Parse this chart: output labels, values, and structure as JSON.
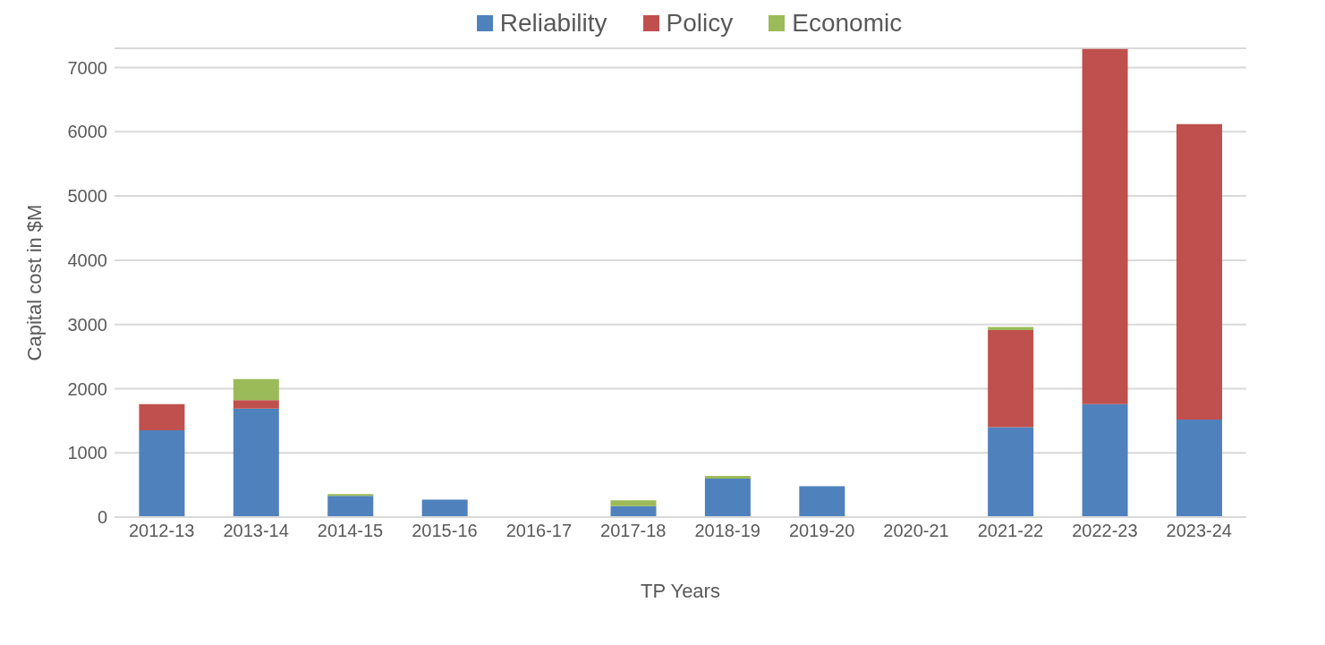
{
  "chart_data": {
    "type": "bar",
    "stacked": true,
    "xlabel": "TP Years",
    "ylabel": "Capital cost in $M",
    "categories": [
      "2012-13",
      "2013-14",
      "2014-15",
      "2015-16",
      "2016-17",
      "2017-18",
      "2018-19",
      "2019-20",
      "2020-21",
      "2021-22",
      "2022-23",
      "2023-24"
    ],
    "series": [
      {
        "name": "Reliability",
        "color": "#4f81bd",
        "values": [
          1350,
          1690,
          330,
          270,
          0,
          170,
          600,
          480,
          0,
          1400,
          1760,
          1520
        ]
      },
      {
        "name": "Policy",
        "color": "#c0504d",
        "values": [
          410,
          130,
          0,
          0,
          0,
          0,
          0,
          0,
          0,
          1510,
          5530,
          4600
        ]
      },
      {
        "name": "Economic",
        "color": "#9bbb59",
        "values": [
          0,
          330,
          30,
          0,
          0,
          90,
          40,
          0,
          0,
          50,
          0,
          0
        ]
      }
    ],
    "ylim": [
      0,
      7300
    ],
    "yticks": [
      0,
      1000,
      2000,
      3000,
      4000,
      5000,
      6000,
      7000
    ],
    "grid": "y",
    "legend": "top"
  }
}
